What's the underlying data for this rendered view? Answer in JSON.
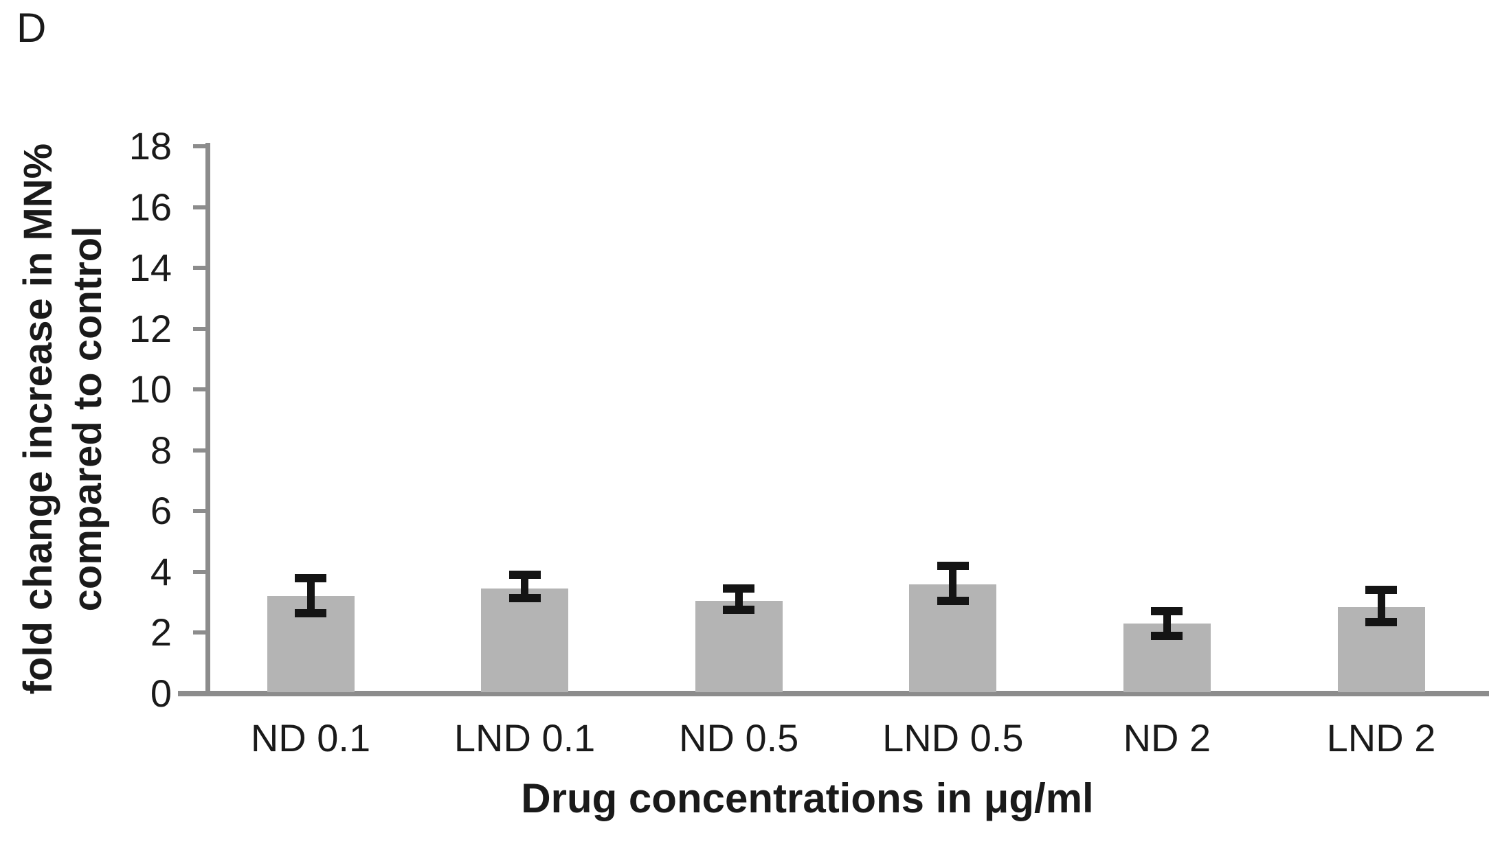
{
  "panel_label": "D",
  "colors": {
    "background": "#ffffff",
    "bar": "#b4b4b4",
    "axis": "#8c8c8c",
    "error_bar": "#141414",
    "text": "#1a1a1a"
  },
  "chart_data": {
    "type": "bar",
    "title": "",
    "categories": [
      "ND 0.1",
      "LND 0.1",
      "ND 0.5",
      "LND 0.5",
      "ND 2",
      "LND 2"
    ],
    "values": [
      3.2,
      3.45,
      3.05,
      3.6,
      2.3,
      2.85
    ],
    "error_upper": [
      3.8,
      3.9,
      3.45,
      4.2,
      2.7,
      3.4
    ],
    "error_lower": [
      2.65,
      3.15,
      2.75,
      3.05,
      1.9,
      2.35
    ],
    "xlabel": "Drug concentrations in μg/ml",
    "ylabel_line1": "fold change increase in MN%",
    "ylabel_line2": "compared to control",
    "ylim": [
      0,
      18
    ],
    "yticks": [
      0,
      2,
      4,
      6,
      8,
      10,
      12,
      14,
      16,
      18
    ],
    "grid": false,
    "legend": "none",
    "error_bars": true
  }
}
